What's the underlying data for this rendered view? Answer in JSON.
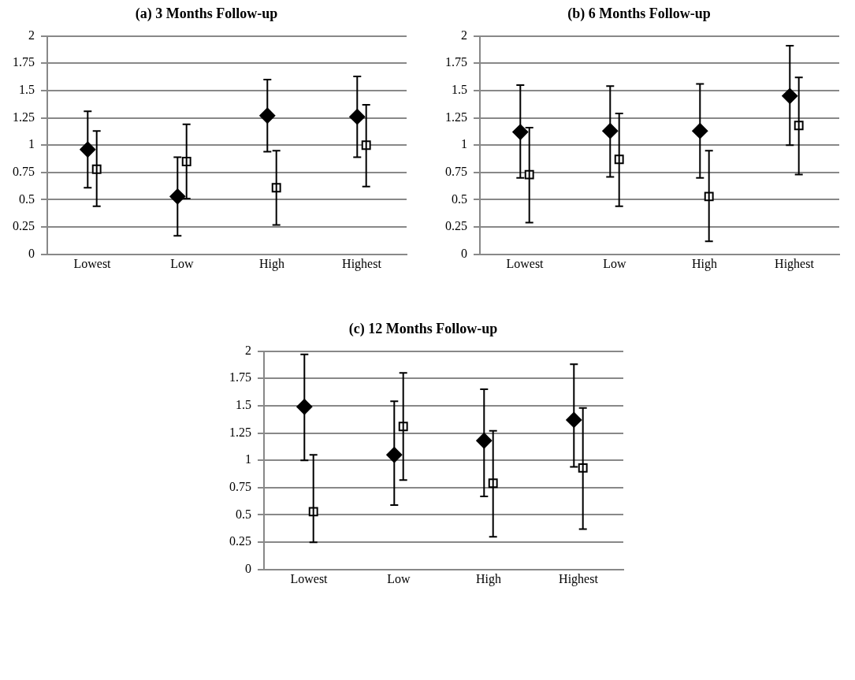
{
  "chart_data": [
    {
      "type": "scatter",
      "title": "(a) 3 Months Follow-up",
      "categories": [
        "Lowest",
        "Low",
        "High",
        "Highest"
      ],
      "ylim": [
        0,
        2
      ],
      "yticks": [
        0,
        0.25,
        0.5,
        0.75,
        1,
        1.25,
        1.5,
        1.75,
        2
      ],
      "grid": "y",
      "legend": false,
      "series": [
        {
          "color": "#000000",
          "marker": "diamond",
          "values": [
            0.96,
            0.53,
            1.27,
            1.26
          ],
          "errors": [
            [
              0.61,
              1.31
            ],
            [
              0.17,
              0.89
            ],
            [
              0.94,
              1.6
            ],
            [
              0.89,
              1.63
            ]
          ]
        },
        {
          "color": "#000000",
          "marker": "square",
          "values": [
            0.78,
            0.85,
            0.61,
            1.0
          ],
          "errors": [
            [
              0.44,
              1.13
            ],
            [
              0.51,
              1.19
            ],
            [
              0.27,
              0.95
            ],
            [
              0.62,
              1.37
            ]
          ]
        }
      ]
    },
    {
      "type": "scatter",
      "title": "(b) 6 Months Follow-up",
      "categories": [
        "Lowest",
        "Low",
        "High",
        "Highest"
      ],
      "ylim": [
        0,
        2
      ],
      "yticks": [
        0,
        0.25,
        0.5,
        0.75,
        1,
        1.25,
        1.5,
        1.75,
        2
      ],
      "grid": "y",
      "legend": false,
      "series": [
        {
          "color": "#000000",
          "marker": "diamond",
          "values": [
            1.12,
            1.13,
            1.13,
            1.45
          ],
          "errors": [
            [
              0.7,
              1.55
            ],
            [
              0.71,
              1.54
            ],
            [
              0.7,
              1.56
            ],
            [
              1.0,
              1.91
            ]
          ]
        },
        {
          "color": "#000000",
          "marker": "square",
          "values": [
            0.73,
            0.87,
            0.53,
            1.18
          ],
          "errors": [
            [
              0.29,
              1.16
            ],
            [
              0.44,
              1.29
            ],
            [
              0.12,
              0.95
            ],
            [
              0.73,
              1.62
            ]
          ]
        }
      ]
    },
    {
      "type": "scatter",
      "title": "(c) 12 Months Follow-up",
      "categories": [
        "Lowest",
        "Low",
        "High",
        "Highest"
      ],
      "ylim": [
        0,
        2
      ],
      "yticks": [
        0,
        0.25,
        0.5,
        0.75,
        1,
        1.25,
        1.5,
        1.75,
        2
      ],
      "grid": "y",
      "legend": false,
      "series": [
        {
          "color": "#000000",
          "marker": "diamond",
          "values": [
            1.49,
            1.05,
            1.18,
            1.37
          ],
          "errors": [
            [
              1.0,
              1.97
            ],
            [
              0.59,
              1.54
            ],
            [
              0.67,
              1.65
            ],
            [
              0.94,
              1.88
            ]
          ]
        },
        {
          "color": "#000000",
          "marker": "square",
          "values": [
            0.53,
            1.31,
            0.79,
            0.93
          ],
          "errors": [
            [
              0.25,
              1.05
            ],
            [
              0.82,
              1.8
            ],
            [
              0.3,
              1.27
            ],
            [
              0.37,
              1.48
            ]
          ]
        }
      ]
    }
  ]
}
